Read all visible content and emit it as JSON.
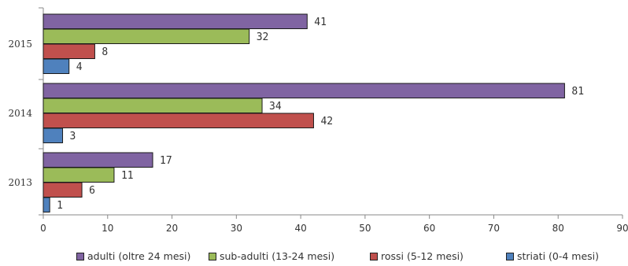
{
  "chart_data": {
    "type": "bar",
    "orientation": "horizontal",
    "categories": [
      "2015",
      "2014",
      "2013"
    ],
    "series": [
      {
        "name": "adulti (oltre 24 mesi)",
        "color": "#8064a2",
        "values": [
          41,
          81,
          17
        ]
      },
      {
        "name": "sub-adulti (13-24 mesi)",
        "color": "#9bbb59",
        "values": [
          32,
          34,
          11
        ]
      },
      {
        "name": "rossi (5-12 mesi)",
        "color": "#c0504d",
        "values": [
          8,
          42,
          6
        ]
      },
      {
        "name": "striati (0-4 mesi)",
        "color": "#4f81bd",
        "values": [
          4,
          3,
          1
        ]
      }
    ],
    "xlim": [
      0,
      90
    ],
    "xticks": [
      0,
      10,
      20,
      30,
      40,
      50,
      60,
      70,
      80,
      90
    ],
    "data_labels": true,
    "legend_position": "bottom",
    "grid": false
  }
}
